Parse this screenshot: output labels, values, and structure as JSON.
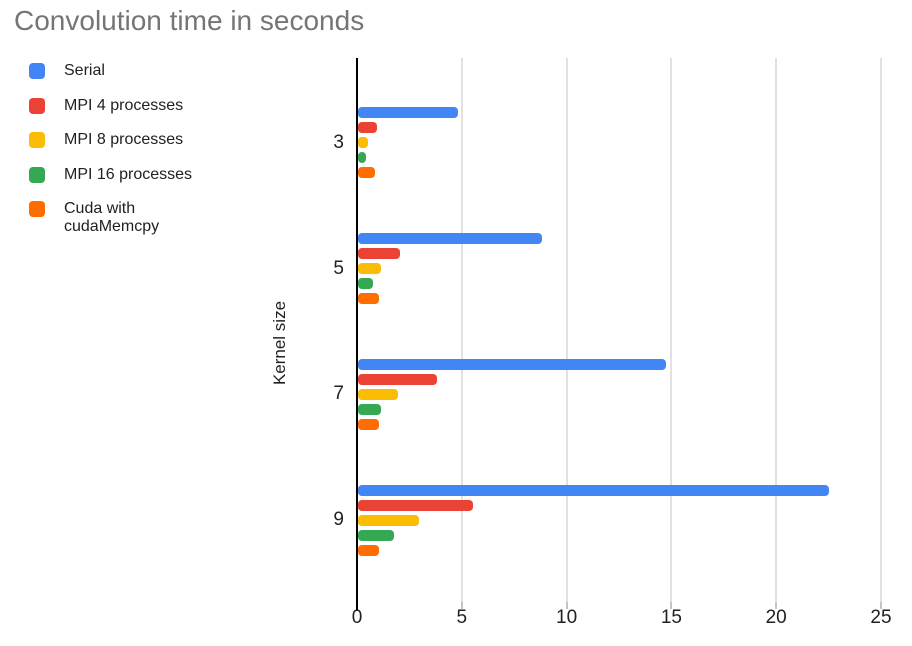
{
  "title": "Convolution time in seconds",
  "chart_data": {
    "type": "bar",
    "orientation": "horizontal",
    "title": "Convolution time in seconds",
    "xlabel": "",
    "ylabel": "Kernel size",
    "categories": [
      "3",
      "5",
      "7",
      "9"
    ],
    "series": [
      {
        "name": "Serial",
        "color": "#4285F4",
        "values": [
          4.8,
          8.8,
          14.7,
          22.5
        ]
      },
      {
        "name": "MPI 4 processes",
        "color": "#EA4335",
        "values": [
          0.9,
          2.0,
          3.8,
          5.5
        ]
      },
      {
        "name": "MPI 8 processes",
        "color": "#FBBC04",
        "values": [
          0.5,
          1.1,
          1.9,
          2.9
        ]
      },
      {
        "name": "MPI 16 processes",
        "color": "#34A853",
        "values": [
          0.4,
          0.7,
          1.1,
          1.7
        ]
      },
      {
        "name": "Cuda with cudaMemcpy",
        "color": "#FF6D01",
        "values": [
          0.8,
          1.0,
          1.0,
          1.0
        ]
      }
    ],
    "xlim": [
      0,
      25
    ],
    "x_ticks": [
      0,
      5,
      10,
      15,
      20,
      25
    ],
    "grid": "vertical",
    "legend_position": "top-left"
  },
  "colors": {
    "title_text": "#757575",
    "axis_text": "#202124",
    "legend_text": "#212121",
    "gridline": "#e1e1e1",
    "axis_line": "#000000",
    "tick_mark": "#c4c4c4",
    "background": "#ffffff"
  }
}
